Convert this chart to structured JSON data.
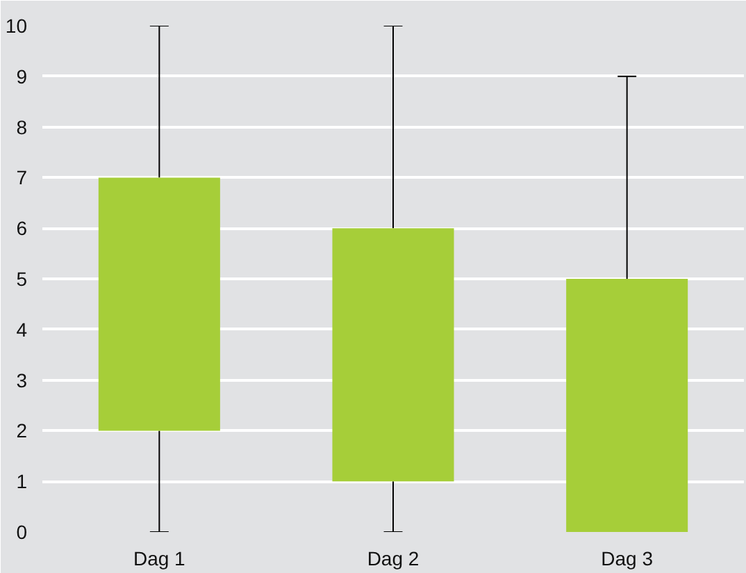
{
  "chart_data": {
    "type": "box",
    "categories": [
      "Dag 1",
      "Dag 2",
      "Dag 3"
    ],
    "boxes": [
      {
        "low": 0,
        "q1": 2,
        "q3": 7,
        "high": 10
      },
      {
        "low": 0,
        "q1": 1,
        "q3": 6,
        "high": 10
      },
      {
        "low": 0,
        "q1": 0,
        "q3": 5,
        "high": 9
      }
    ],
    "color": "#a6ce39",
    "ylim": [
      0,
      10
    ],
    "yticks": [
      0,
      1,
      2,
      3,
      4,
      5,
      6,
      7,
      8,
      9,
      10
    ],
    "grid": "y"
  }
}
